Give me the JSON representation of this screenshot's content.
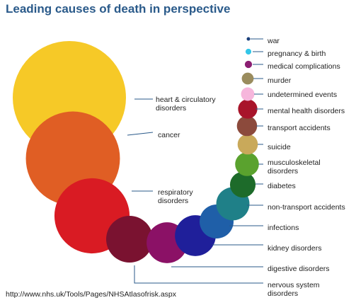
{
  "chart_data": {
    "type": "bubble",
    "title": "Leading causes of death in perspective",
    "source": "http://www.nhs.uk/Tools/Pages/NHSAtlasofrisk.aspx",
    "categories": [
      "heart & circulatory disorders",
      "cancer",
      "respiratory disorders",
      "nervous system disorders",
      "digestive disorders",
      "kidney disorders",
      "infections",
      "non-transport accidents",
      "diabetes",
      "musculoskeletal disorders",
      "suicide",
      "transport accidents",
      "mental health disorders",
      "undetermined events",
      "murder",
      "medical complications",
      "pregnancy & birth",
      "war"
    ],
    "series": [
      {
        "values": [
          100,
          69,
          44,
          17,
          13,
          13,
          9,
          8.6,
          5.1,
          4.4,
          3.2,
          3.2,
          2.9,
          1.4,
          1.1,
          0.41,
          0.26,
          0.03
        ],
        "labels": [
          [
            "heart & circulatory",
            "disorders"
          ],
          [
            "cancer"
          ],
          [
            "respiratory",
            "disorders"
          ],
          [
            "nervous system",
            "disorders"
          ],
          [
            "digestive disorders"
          ],
          [
            "kidney disorders"
          ],
          [
            "infections"
          ],
          [
            "non-transport accidents"
          ],
          [
            "diabetes"
          ],
          [
            "musculoskeletal",
            "disorders"
          ],
          [
            "suicide"
          ],
          [
            "transport accidents"
          ],
          [
            "mental health disorders"
          ],
          [
            "undetermined events"
          ],
          [
            "murder"
          ],
          [
            "medical complications"
          ],
          [
            "pregnancy & birth"
          ],
          [
            "war"
          ]
        ],
        "colors": [
          "#f6c927",
          "#e05e24",
          "#d91b23",
          "#7a1230",
          "#8b1166",
          "#1f1f9a",
          "#1f5fa8",
          "#1f8088",
          "#1d6b2a",
          "#5aa22e",
          "#c9a95a",
          "#8c4a3c",
          "#a8142a",
          "#f6b6dc",
          "#9a8c5e",
          "#8b1f72",
          "#33c6e8",
          "#1a3f7a"
        ]
      }
    ],
    "leader_line_color": "#2a5a8a"
  }
}
